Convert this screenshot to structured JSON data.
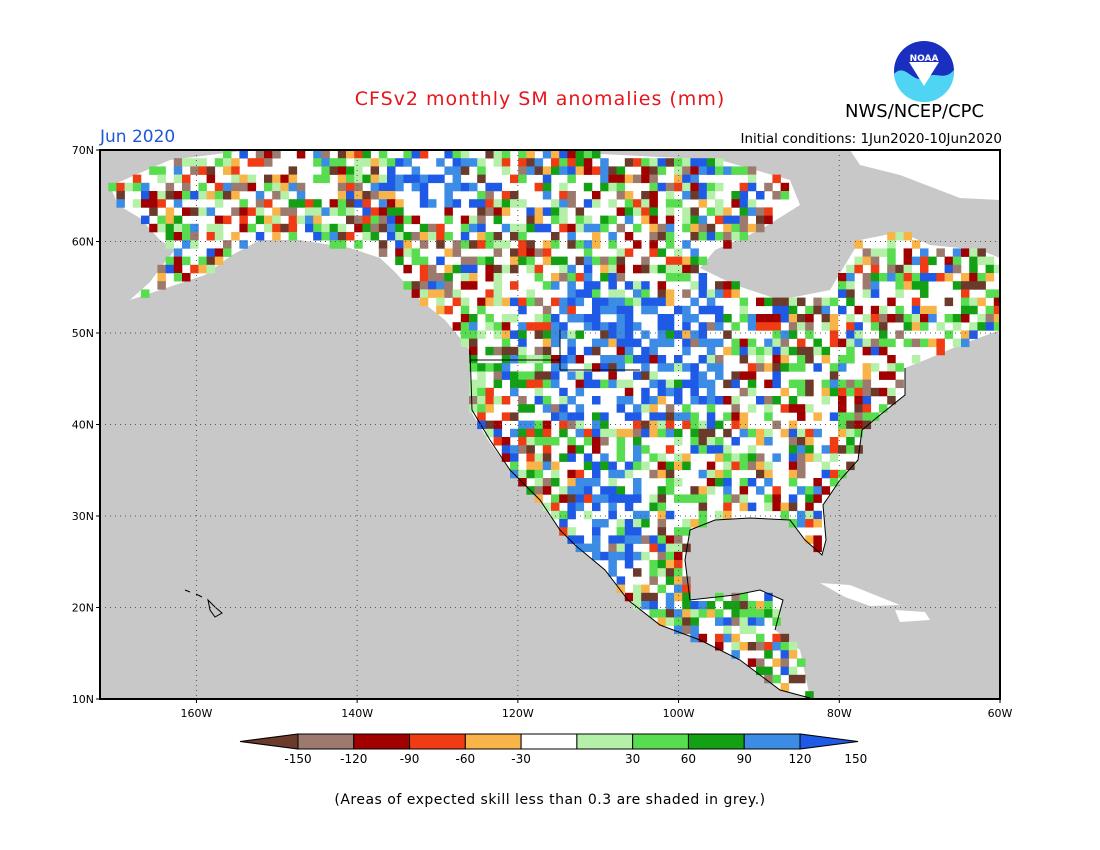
{
  "header": {
    "title": "CFSv2 monthly SM anomalies (mm)",
    "org": "NWS/NCEP/CPC",
    "month": "Jun 2020",
    "initial_conditions": "Initial conditions: 1Jun2020-10Jun2020",
    "logo_text": "NOAA"
  },
  "map": {
    "lon_range": [
      -172,
      -60
    ],
    "lat_range": [
      10,
      70
    ],
    "lat_ticks": [
      {
        "value": 70,
        "label": "70N"
      },
      {
        "value": 60,
        "label": "60N"
      },
      {
        "value": 50,
        "label": "50N"
      },
      {
        "value": 40,
        "label": "40N"
      },
      {
        "value": 30,
        "label": "30N"
      },
      {
        "value": 20,
        "label": "20N"
      },
      {
        "value": 10,
        "label": "10N"
      }
    ],
    "lon_ticks": [
      {
        "value": -160,
        "label": "160W"
      },
      {
        "value": -140,
        "label": "140W"
      },
      {
        "value": -120,
        "label": "120W"
      },
      {
        "value": -100,
        "label": "100W"
      },
      {
        "value": -80,
        "label": "80W"
      },
      {
        "value": -60,
        "label": "60W"
      }
    ],
    "ocean_color": "#c8c8c8",
    "grid": "dotted"
  },
  "colorbar": {
    "labels": [
      "-150",
      "-120",
      "-90",
      "-60",
      "-30",
      "30",
      "60",
      "90",
      "120",
      "150"
    ],
    "colors": [
      "#6b3a2a",
      "#9c7a6e",
      "#a00000",
      "#f03c14",
      "#f8b448",
      "#ffffff",
      "#b4f0a8",
      "#58dc50",
      "#14a014",
      "#3c8ce6",
      "#1e5ae6"
    ]
  },
  "footnote": "(Areas of expected skill less than 0.3 are shaded in grey.)"
}
